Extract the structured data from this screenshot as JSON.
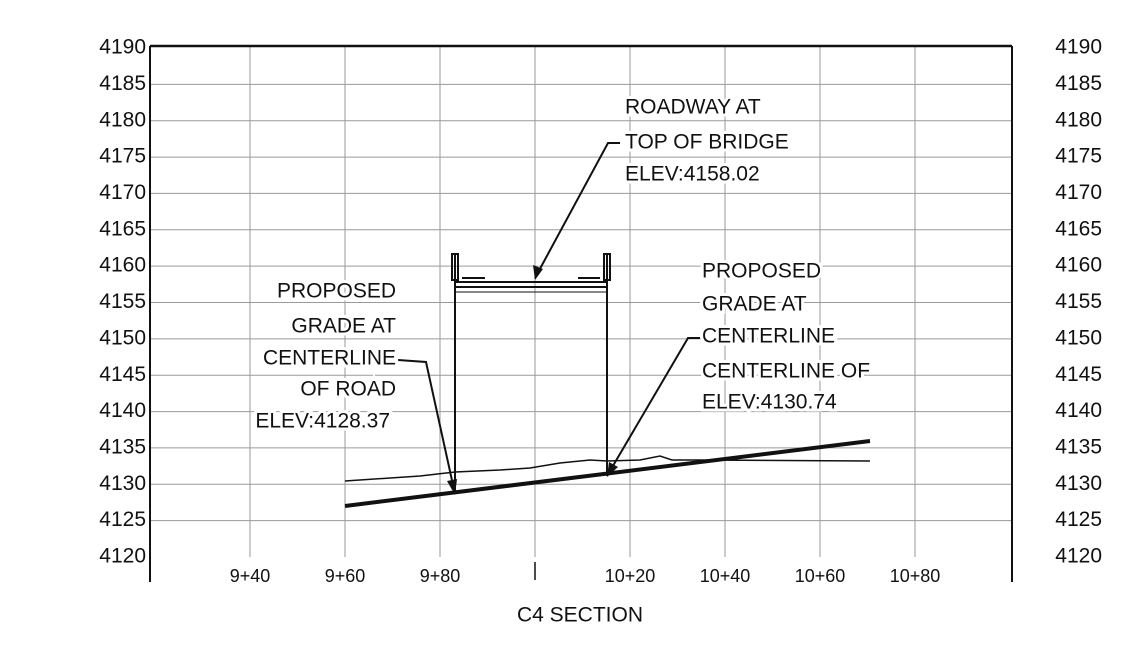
{
  "section": {
    "title": "C4 SECTION",
    "left_labels": [
      "4190",
      "4185",
      "4180",
      "4175",
      "4170",
      "4165",
      "4160",
      "4155",
      "4150",
      "4145",
      "4140",
      "4135",
      "4130",
      "4125",
      "4120"
    ],
    "right_labels": [
      "4190",
      "4185",
      "4180",
      "4175",
      "4170",
      "4165",
      "4160",
      "4155",
      "4150",
      "4145",
      "4140",
      "4135",
      "4130",
      "4125",
      "4120"
    ],
    "station_labels": [
      "9+40",
      "9+60",
      "9+80",
      "10+20",
      "10+40",
      "10+60",
      "10+80"
    ],
    "annotations": [
      {
        "lines": [
          "ROADWAY AT",
          "TOP OF BRIDGE",
          "ELEV:4158.02"
        ]
      },
      {
        "lines": [
          "PROPOSED",
          "GRADE AT",
          "CENTERLINE",
          "OF ROAD",
          "ELEV:4128.37"
        ]
      },
      {
        "lines": [
          "PROPOSED",
          "GRADE AT",
          "CENTERLINE",
          "CENTERLINE OF",
          "ELEV:4130.74"
        ]
      }
    ]
  }
}
